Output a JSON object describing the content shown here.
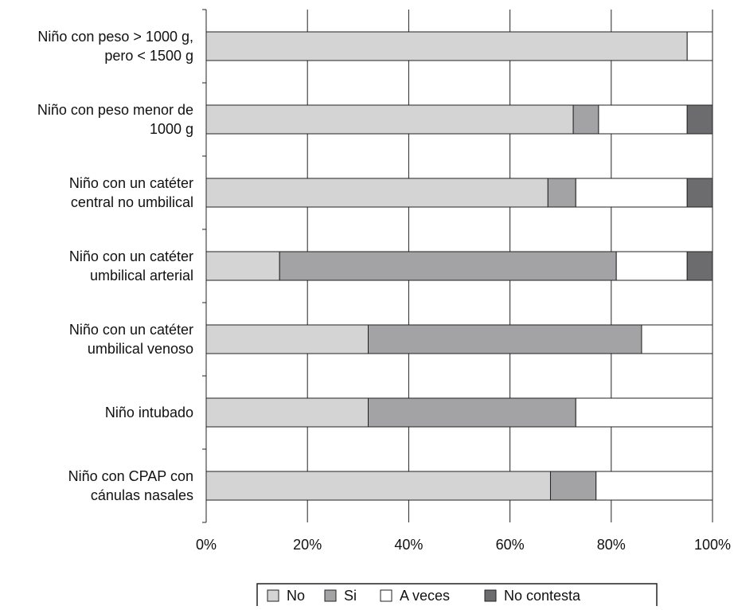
{
  "chart_data": {
    "type": "bar",
    "orientation": "horizontal",
    "stacked": "percent",
    "categories": [
      [
        "Niño con peso > 1000 g,",
        "pero < 1500 g"
      ],
      [
        "Niño con peso menor de",
        "1000 g"
      ],
      [
        "Niño con un catéter",
        "central no umbilical"
      ],
      [
        "Niño con un catéter",
        "umbilical arterial"
      ],
      [
        "Niño con un catéter",
        "umbilical venoso"
      ],
      [
        "Niño intubado"
      ],
      [
        "Niño con CPAP con",
        "cánulas nasales"
      ]
    ],
    "series": [
      {
        "name": "No",
        "color": "#d4d4d4",
        "values": [
          95,
          72.5,
          67.5,
          14.5,
          32,
          32,
          68
        ]
      },
      {
        "name": "Si",
        "color": "#a3a3a5",
        "values": [
          0,
          5,
          5.5,
          66.5,
          54,
          41,
          9
        ]
      },
      {
        "name": "A veces",
        "color": "#ffffff",
        "values": [
          5,
          17.5,
          22,
          14,
          14,
          27,
          23
        ]
      },
      {
        "name": "No contesta",
        "color": "#6c6c6e",
        "values": [
          0,
          5,
          5,
          5,
          0,
          0,
          0
        ]
      }
    ],
    "x_ticks": [
      "0%",
      "20%",
      "40%",
      "60%",
      "80%",
      "100%"
    ],
    "xlim": [
      0,
      100
    ],
    "grid": true,
    "legend_position": "bottom"
  }
}
